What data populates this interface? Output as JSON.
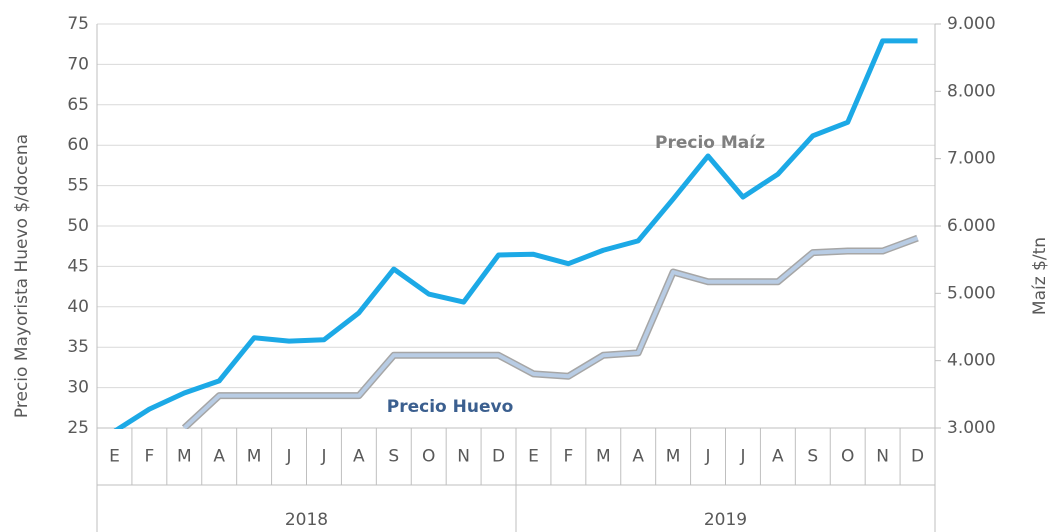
{
  "chart_data": {
    "type": "line",
    "categories": [
      "E",
      "F",
      "M",
      "A",
      "M",
      "J",
      "J",
      "A",
      "S",
      "O",
      "N",
      "D",
      "E",
      "F",
      "M",
      "A",
      "M",
      "J",
      "J",
      "A",
      "S",
      "O",
      "N",
      "D"
    ],
    "groups": [
      "2018",
      "2019"
    ],
    "series": [
      {
        "name": "Precio Maíz",
        "color": "#1ca9e6",
        "axis": "y2",
        "values": [
          2950,
          3280,
          3520,
          3700,
          4340,
          4290,
          4310,
          4710,
          5360,
          4990,
          4870,
          5570,
          5580,
          5440,
          5640,
          5780,
          6400,
          7040,
          6430,
          6770,
          7340,
          7540,
          8750,
          8750
        ]
      },
      {
        "name": "Precio Huevo",
        "color": "#b8cce4",
        "axis": "y",
        "values": [
          null,
          null,
          25,
          29,
          29,
          29,
          29,
          29,
          34,
          34,
          34,
          34,
          31.7,
          31.4,
          34,
          34.3,
          44.3,
          43.1,
          43.1,
          43.1,
          46.7,
          46.9,
          46.9,
          48.5
        ]
      }
    ],
    "ylabel": "Precio Mayorista Huevo $/docena",
    "y2label": "Maíz $/tn",
    "ylim": [
      25,
      75
    ],
    "yticks": [
      25,
      30,
      35,
      40,
      45,
      50,
      55,
      60,
      65,
      70,
      75
    ],
    "y2lim": [
      3000,
      9000
    ],
    "y2ticks": [
      {
        "value": 3000,
        "label": "3.000"
      },
      {
        "value": 4000,
        "label": "4.000"
      },
      {
        "value": 5000,
        "label": "5.000"
      },
      {
        "value": 6000,
        "label": "6.000"
      },
      {
        "value": 7000,
        "label": "7.000"
      },
      {
        "value": 8000,
        "label": "8.000"
      },
      {
        "value": 9000,
        "label": "9.000"
      }
    ],
    "grid": true,
    "annotations": [
      "Precio Maíz",
      "Precio Huevo"
    ]
  }
}
